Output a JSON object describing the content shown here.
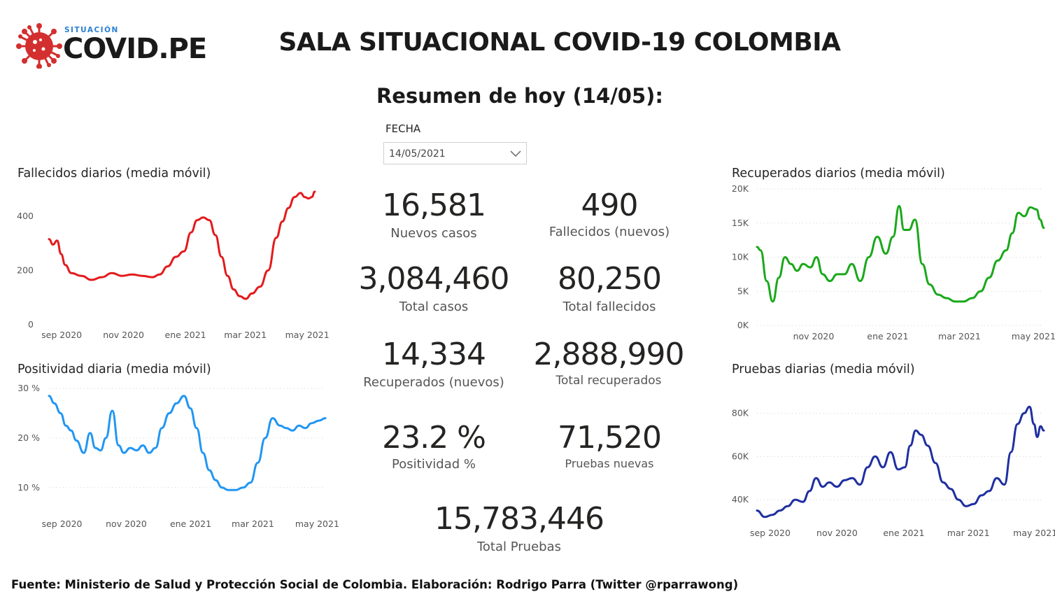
{
  "logo": {
    "small_text": "SITUACIÓN",
    "main_text": "COVID.PE",
    "icon": "virus-icon",
    "icon_color": "#d32f2f"
  },
  "title": "SALA SITUACIONAL COVID-19 COLOMBIA",
  "subtitle": "Resumen de hoy (14/05):",
  "fecha": {
    "label": "FECHA",
    "value": "14/05/2021",
    "icon": "chevron-down-icon"
  },
  "kpis": {
    "nuevos_casos": {
      "value": "16,581",
      "label": "Nuevos casos"
    },
    "fallecidos_nuevos": {
      "value": "490",
      "label": "Fallecidos (nuevos)"
    },
    "total_casos": {
      "value": "3,084,460",
      "label": "Total casos"
    },
    "total_fallecidos": {
      "value": "80,250",
      "label": "Total fallecidos"
    },
    "recuperados_nuevos": {
      "value": "14,334",
      "label": "Recuperados (nuevos)"
    },
    "total_recuperados": {
      "value": "2,888,990",
      "label": "Total recuperados"
    },
    "positividad": {
      "value": "23.2 %",
      "label": "Positividad %"
    },
    "pruebas_nuevas": {
      "value": "71,520",
      "label": "Pruebas nuevas"
    },
    "total_pruebas": {
      "value": "15,783,446",
      "label": "Total Pruebas"
    }
  },
  "footer": "Fuente: Ministerio de Salud y Protección Social de Colombia. Elaboración: Rodrigo Parra (Twitter @rparrawong)",
  "chart_data": [
    {
      "id": "fallecidos",
      "type": "line",
      "title": "Fallecidos diarios (media móvil)",
      "color": "#e31a1c",
      "x_start": "2020-08-25",
      "x_end": "2021-05-14",
      "ylim": [
        0,
        500
      ],
      "y_ticks": [
        0,
        200,
        400
      ],
      "y_tick_labels": [
        "0",
        "200",
        "400"
      ],
      "x_ticks": [
        "2020-09-01",
        "2020-11-01",
        "2021-01-01",
        "2021-03-01",
        "2021-05-01"
      ],
      "x_tick_labels": [
        "sep 2020",
        "nov 2020",
        "ene 2021",
        "mar 2021",
        "may 2021"
      ],
      "gridlines": false,
      "x": [
        "2020-08-25",
        "2020-08-29",
        "2020-09-02",
        "2020-09-06",
        "2020-09-10",
        "2020-09-16",
        "2020-09-26",
        "2020-10-06",
        "2020-10-16",
        "2020-10-26",
        "2020-11-05",
        "2020-11-15",
        "2020-11-25",
        "2020-12-05",
        "2020-12-12",
        "2020-12-20",
        "2020-12-28",
        "2021-01-05",
        "2021-01-12",
        "2021-01-18",
        "2021-01-24",
        "2021-01-30",
        "2021-02-05",
        "2021-02-11",
        "2021-02-17",
        "2021-02-23",
        "2021-03-01",
        "2021-03-07",
        "2021-03-13",
        "2021-03-21",
        "2021-03-29",
        "2021-04-06",
        "2021-04-12",
        "2021-04-18",
        "2021-04-24",
        "2021-04-30",
        "2021-05-04",
        "2021-05-08",
        "2021-05-11",
        "2021-05-14"
      ],
      "y": [
        315,
        295,
        310,
        260,
        220,
        190,
        180,
        165,
        175,
        190,
        180,
        185,
        180,
        175,
        185,
        215,
        250,
        270,
        340,
        385,
        395,
        385,
        330,
        250,
        180,
        130,
        105,
        95,
        115,
        140,
        200,
        320,
        380,
        430,
        470,
        485,
        470,
        465,
        470,
        490
      ]
    },
    {
      "id": "positividad",
      "type": "line",
      "title": "Positividad diaria (media móvil)",
      "color": "#2196f3",
      "x_start": "2020-08-25",
      "x_end": "2021-05-14",
      "ylim": [
        7,
        31
      ],
      "y_ticks": [
        10,
        20,
        30
      ],
      "y_tick_labels": [
        "10 %",
        "20 %",
        "30 %"
      ],
      "x_ticks": [
        "2020-09-01",
        "2020-11-01",
        "2021-01-01",
        "2021-03-01",
        "2021-05-01"
      ],
      "x_tick_labels": [
        "sep 2020",
        "nov 2020",
        "ene 2021",
        "mar 2021",
        "may 2021"
      ],
      "gridlines": true,
      "x": [
        "2020-08-25",
        "2020-08-30",
        "2020-09-05",
        "2020-09-10",
        "2020-09-15",
        "2020-09-20",
        "2020-09-27",
        "2020-10-03",
        "2020-10-08",
        "2020-10-13",
        "2020-10-18",
        "2020-10-24",
        "2020-10-30",
        "2020-11-04",
        "2020-11-10",
        "2020-11-16",
        "2020-11-22",
        "2020-11-28",
        "2020-12-04",
        "2020-12-10",
        "2020-12-17",
        "2020-12-24",
        "2020-12-31",
        "2021-01-06",
        "2021-01-12",
        "2021-01-18",
        "2021-01-24",
        "2021-01-30",
        "2021-02-05",
        "2021-02-11",
        "2021-02-18",
        "2021-02-25",
        "2021-03-04",
        "2021-03-11",
        "2021-03-18",
        "2021-03-25",
        "2021-04-01",
        "2021-04-07",
        "2021-04-13",
        "2021-04-19",
        "2021-04-25",
        "2021-05-01",
        "2021-05-08",
        "2021-05-14"
      ],
      "y": [
        28.5,
        27,
        25,
        22.5,
        21.5,
        19.5,
        17,
        21,
        18,
        17.5,
        20,
        25.5,
        18.5,
        17,
        18,
        17.5,
        18.5,
        17,
        18,
        22,
        25,
        27,
        28.5,
        26,
        22,
        17,
        13.5,
        11.5,
        10,
        9.5,
        9.5,
        10,
        11,
        15,
        20,
        24,
        22.5,
        22,
        21.5,
        22.5,
        22,
        23,
        23.5,
        24
      ]
    },
    {
      "id": "recuperados",
      "type": "line",
      "title": "Recuperados diarios (media móvil)",
      "color": "#1aa81a",
      "x_start": "2020-09-20",
      "x_end": "2021-05-14",
      "ylim": [
        0,
        20000
      ],
      "y_ticks": [
        0,
        5000,
        10000,
        15000,
        20000
      ],
      "y_tick_labels": [
        "0K",
        "5K",
        "10K",
        "15K",
        "20K"
      ],
      "x_ticks": [
        "2020-11-01",
        "2021-01-01",
        "2021-03-01",
        "2021-05-01"
      ],
      "x_tick_labels": [
        "nov 2020",
        "ene 2021",
        "mar 2021",
        "may 2021"
      ],
      "gridlines": true,
      "x": [
        "2020-09-20",
        "2020-09-23",
        "2020-09-28",
        "2020-10-03",
        "2020-10-08",
        "2020-10-13",
        "2020-10-18",
        "2020-10-23",
        "2020-10-28",
        "2020-11-03",
        "2020-11-08",
        "2020-11-13",
        "2020-11-19",
        "2020-11-25",
        "2020-12-01",
        "2020-12-07",
        "2020-12-14",
        "2020-12-21",
        "2020-12-28",
        "2021-01-04",
        "2021-01-10",
        "2021-01-15",
        "2021-01-19",
        "2021-01-23",
        "2021-01-28",
        "2021-02-03",
        "2021-02-09",
        "2021-02-16",
        "2021-02-23",
        "2021-03-02",
        "2021-03-09",
        "2021-03-16",
        "2021-03-23",
        "2021-03-30",
        "2021-04-06",
        "2021-04-13",
        "2021-04-18",
        "2021-04-23",
        "2021-04-28",
        "2021-05-03",
        "2021-05-08",
        "2021-05-11",
        "2021-05-14"
      ],
      "y": [
        11500,
        11000,
        6500,
        3500,
        7000,
        10000,
        9000,
        8000,
        9000,
        8500,
        10000,
        7500,
        6500,
        7500,
        7500,
        9000,
        6500,
        10000,
        13000,
        10500,
        13000,
        17500,
        14000,
        14000,
        15500,
        9000,
        6000,
        4500,
        4000,
        3500,
        3500,
        4000,
        5000,
        7000,
        9500,
        11000,
        13500,
        16500,
        16000,
        17300,
        17000,
        15500,
        14300
      ]
    },
    {
      "id": "pruebas",
      "type": "line",
      "title": "Pruebas diarias (media móvil)",
      "color": "#1f2fa0",
      "x_start": "2020-08-25",
      "x_end": "2021-05-14",
      "ylim": [
        30000,
        86000
      ],
      "y_ticks": [
        40000,
        60000,
        80000
      ],
      "y_tick_labels": [
        "40K",
        "60K",
        "80K"
      ],
      "x_ticks": [
        "2020-09-01",
        "2020-11-01",
        "2021-01-01",
        "2021-03-01",
        "2021-05-01"
      ],
      "x_tick_labels": [
        "sep 2020",
        "nov 2020",
        "ene 2021",
        "mar 2021",
        "may 2021"
      ],
      "gridlines": true,
      "x": [
        "2020-08-25",
        "2020-09-01",
        "2020-09-08",
        "2020-09-15",
        "2020-09-22",
        "2020-09-29",
        "2020-10-06",
        "2020-10-12",
        "2020-10-18",
        "2020-10-24",
        "2020-10-30",
        "2020-11-06",
        "2020-11-13",
        "2020-11-20",
        "2020-11-27",
        "2020-12-04",
        "2020-12-11",
        "2020-12-18",
        "2020-12-25",
        "2021-01-01",
        "2021-01-07",
        "2021-01-12",
        "2021-01-17",
        "2021-01-22",
        "2021-01-28",
        "2021-02-04",
        "2021-02-11",
        "2021-02-18",
        "2021-02-25",
        "2021-03-04",
        "2021-03-11",
        "2021-03-18",
        "2021-03-25",
        "2021-04-01",
        "2021-04-08",
        "2021-04-14",
        "2021-04-20",
        "2021-04-26",
        "2021-05-01",
        "2021-05-05",
        "2021-05-08",
        "2021-05-11",
        "2021-05-14"
      ],
      "y": [
        35000,
        32000,
        33000,
        35000,
        37000,
        40000,
        39000,
        44000,
        50000,
        46000,
        48000,
        46000,
        49000,
        50000,
        47000,
        55000,
        60000,
        55000,
        62000,
        54000,
        55000,
        65000,
        72000,
        70000,
        65000,
        57000,
        48000,
        45000,
        40000,
        37000,
        38000,
        42000,
        44000,
        50000,
        47000,
        62000,
        75000,
        80000,
        83000,
        75000,
        69000,
        74000,
        72000
      ]
    }
  ]
}
